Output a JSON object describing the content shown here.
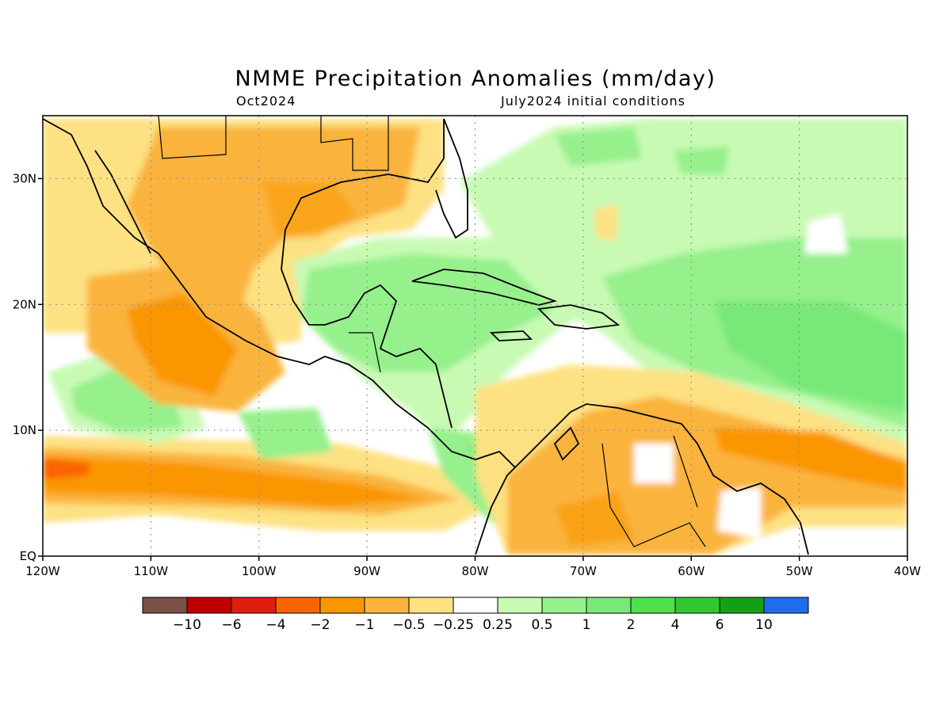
{
  "title": "NMME Precipitation Anomalies (mm/day)",
  "subtitle_left": "Oct2024",
  "subtitle_right": "July2024 initial conditions",
  "map": {
    "lon_ticks": [
      "120W",
      "110W",
      "100W",
      "90W",
      "80W",
      "70W",
      "60W",
      "50W",
      "40W"
    ],
    "lat_ticks": [
      "EQ",
      "10N",
      "20N",
      "30N"
    ],
    "lon_range": [
      -120,
      -40
    ],
    "lat_range": [
      0,
      35
    ],
    "grid": "dotted"
  },
  "colorbar": {
    "colors": [
      "#7a5048",
      "#c00000",
      "#e01e10",
      "#fa6400",
      "#fa9600",
      "#fab43c",
      "#fde182",
      "#ffffff",
      "#c8fab4",
      "#96f08c",
      "#78e878",
      "#50e04e",
      "#32c832",
      "#14a014",
      "#1e6eeb"
    ],
    "labels": [
      "−10",
      "−6",
      "−4",
      "−2",
      "−1",
      "−0.5",
      "−0.25",
      "0.25",
      "0.5",
      "1",
      "2",
      "4",
      "6",
      "10"
    ]
  }
}
